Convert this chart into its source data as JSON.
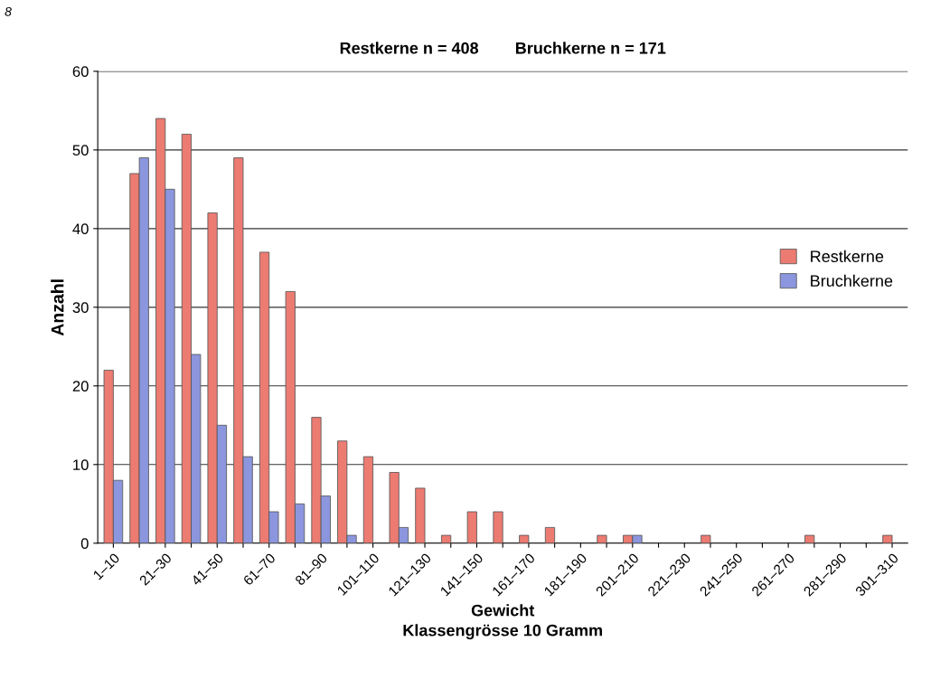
{
  "chart_data": {
    "type": "bar",
    "title": "Restkerne n = 408        Bruchkerne n = 171",
    "xlabel": "Gewicht\nKlassengrösse 10 Gramm",
    "ylabel": "Anzahl",
    "annotations": [
      "8"
    ],
    "categories": [
      "1–10",
      null,
      "21–30",
      null,
      "41–50",
      null,
      "61–70",
      null,
      "81–90",
      null,
      "101–110",
      null,
      "121–130",
      null,
      "141–150",
      null,
      "161–170",
      null,
      "181–190",
      null,
      "201–210",
      null,
      "221–230",
      null,
      "241–250",
      null,
      "261–270",
      null,
      "281–290",
      null,
      "301–310"
    ],
    "series": [
      {
        "name": "Restkerne",
        "color": "#ec7b72",
        "values": [
          22,
          47,
          54,
          52,
          42,
          49,
          37,
          32,
          16,
          13,
          11,
          9,
          7,
          1,
          4,
          4,
          1,
          2,
          0,
          1,
          1,
          0,
          0,
          1,
          0,
          0,
          0,
          1,
          0,
          0,
          1
        ]
      },
      {
        "name": "Bruchkerne",
        "color": "#8c96de",
        "values": [
          8,
          49,
          45,
          24,
          15,
          11,
          4,
          5,
          6,
          1,
          0,
          2,
          0,
          0,
          0,
          0,
          0,
          0,
          0,
          0,
          1,
          0,
          0,
          0,
          0,
          0,
          0,
          0,
          0,
          0,
          0
        ]
      }
    ],
    "ylim": [
      0,
      60
    ],
    "yticks": [
      0,
      10,
      20,
      30,
      40,
      50,
      60
    ],
    "grid": "y",
    "legend": "right"
  }
}
